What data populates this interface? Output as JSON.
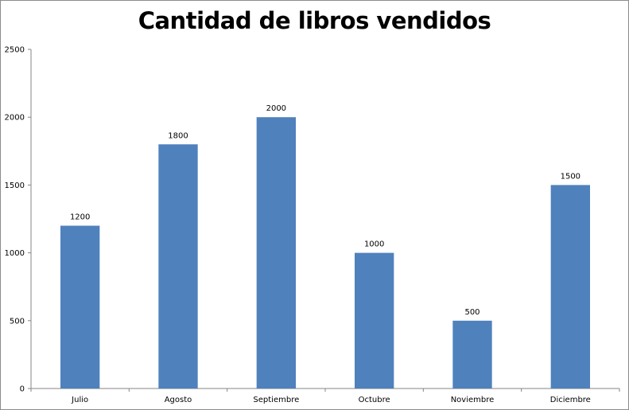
{
  "chart_data": {
    "type": "bar",
    "title": "Cantidad de libros vendidos",
    "xlabel": "",
    "ylabel": "",
    "categories": [
      "Julio",
      "Agosto",
      "Septiembre",
      "Octubre",
      "Noviembre",
      "Diciembre"
    ],
    "values": [
      1200,
      1800,
      2000,
      1000,
      500,
      1500
    ],
    "data_labels": [
      "1200",
      "1800",
      "2000",
      "1000",
      "500",
      "1500"
    ],
    "ylim": [
      0,
      2500
    ],
    "yticks": [
      0,
      500,
      1000,
      1500,
      2000,
      2500
    ],
    "ytick_labels": [
      "0",
      "500",
      "1000",
      "1500",
      "2000",
      "2500"
    ],
    "grid": false,
    "legend": "none",
    "colors": {
      "bar": "#4f81bd",
      "axis": "#868686",
      "border": "#8c8c8c"
    }
  }
}
